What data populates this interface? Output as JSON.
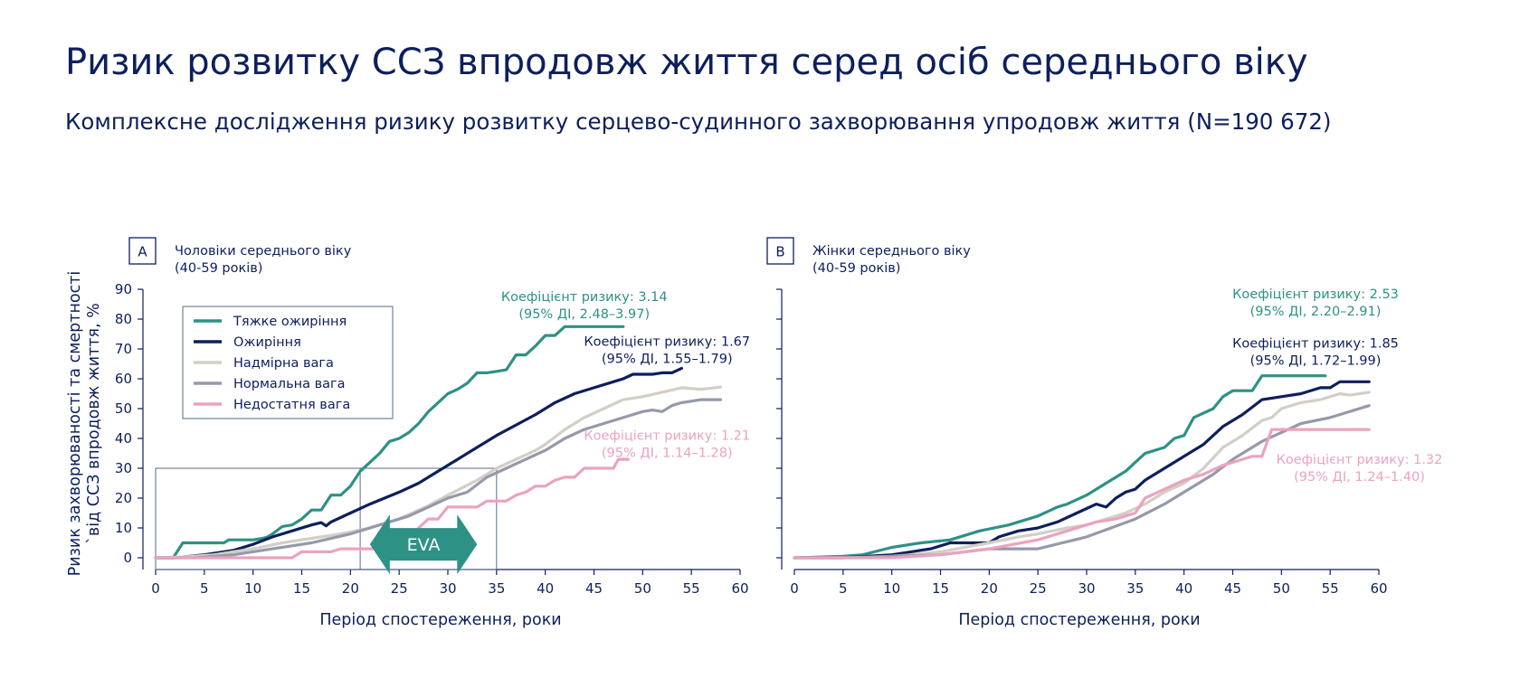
{
  "page": {
    "title": "Ризик розвитку ССЗ впродовж життя серед осіб середнього віку",
    "subtitle": "Комплексне дослідження ризику розвитку серцево-судинного захворювання упродовж життя (N=190 672)"
  },
  "colors": {
    "navy": "#0d1f5c",
    "severe_obesity": "#2e9185",
    "obesity": "#0d1f5c",
    "overweight": "#d3cec6",
    "normal": "#9699a9",
    "underweight": "#eaa3bf",
    "eva_arrow": "#2e9185"
  },
  "chart_data": [
    {
      "type": "line",
      "panel_letter": "A",
      "panel_title": [
        "Чоловіки середнього віку",
        "(40-59 років)"
      ],
      "ylabel": [
        "Ризик захворюваності та смертності",
        "`від ССЗ впродовж життя, %"
      ],
      "xlabel": "Період спостереження, роки",
      "xlim": [
        0,
        60
      ],
      "ylim": [
        0,
        90
      ],
      "xticks": [
        0,
        5,
        10,
        15,
        20,
        25,
        30,
        35,
        40,
        45,
        50,
        55,
        60
      ],
      "yticks": [
        0,
        10,
        20,
        30,
        40,
        50,
        60,
        70,
        80,
        90
      ],
      "legend": [
        {
          "label": "Тяжке ожиріння",
          "color_key": "severe_obesity"
        },
        {
          "label": "Ожиріння",
          "color_key": "obesity"
        },
        {
          "label": "Надмірна вага",
          "color_key": "overweight"
        },
        {
          "label": "Нормальна вага",
          "color_key": "normal"
        },
        {
          "label": "Недостатня вага",
          "color_key": "underweight"
        }
      ],
      "legend_position": "top-left",
      "series": [
        {
          "name": "Тяжке ожиріння",
          "color_key": "severe_obesity",
          "x": [
            0,
            1.8,
            2.8,
            3,
            5,
            7,
            7.5,
            8,
            10,
            11,
            11.5,
            12,
            13,
            14,
            15,
            16,
            17,
            18,
            19,
            20,
            21,
            22,
            23,
            24,
            25,
            26,
            27,
            28,
            29,
            30,
            31,
            32,
            33,
            34,
            35,
            36,
            37,
            38,
            39,
            40,
            41,
            42,
            45,
            48
          ],
          "y": [
            0,
            0,
            5,
            5,
            5,
            5,
            6,
            6,
            6,
            6.5,
            7,
            8,
            10.5,
            11,
            13,
            16,
            16,
            21,
            21,
            24,
            29,
            32,
            35,
            39,
            40,
            42,
            45,
            49,
            52,
            55,
            56.5,
            58.5,
            62,
            62,
            62.5,
            63,
            68,
            68,
            71,
            74.5,
            74.5,
            77.5,
            77.5,
            77.5
          ]
        },
        {
          "name": "Ожиріння",
          "color_key": "obesity",
          "x": [
            0,
            2,
            5,
            8,
            10,
            12,
            14,
            16,
            17,
            17.5,
            18,
            20,
            22,
            25,
            27,
            29,
            31,
            33,
            35,
            37,
            39,
            41,
            43,
            45,
            47,
            48,
            49,
            50,
            51,
            52,
            53,
            54
          ],
          "y": [
            0,
            0,
            1,
            2.5,
            4.5,
            7,
            9,
            11,
            11.8,
            10.7,
            12,
            15,
            18,
            22,
            25,
            29,
            33,
            37,
            41,
            44.5,
            48,
            52,
            55,
            57,
            59,
            60,
            61.5,
            61.5,
            61.5,
            62,
            62,
            63.5
          ]
        },
        {
          "name": "Надмірна вага",
          "color_key": "overweight",
          "x": [
            0,
            3,
            6,
            10,
            13,
            16,
            19,
            22,
            25,
            28,
            30,
            33,
            35,
            37,
            39,
            40,
            42,
            44,
            46,
            48,
            50,
            52,
            54,
            56,
            58
          ],
          "y": [
            0,
            0.3,
            1,
            3,
            5,
            6.5,
            8,
            10,
            13,
            17.5,
            21,
            26,
            30,
            33,
            36,
            38,
            43,
            47,
            50,
            53,
            54,
            55.5,
            57,
            56.5,
            57.2
          ]
        },
        {
          "name": "Нормальна вага",
          "color_key": "normal",
          "x": [
            0,
            4,
            8,
            12,
            16,
            20,
            23,
            26,
            28,
            30,
            32,
            34,
            36,
            38,
            40,
            42,
            44,
            46,
            48,
            50,
            51,
            52,
            53,
            54,
            55,
            56,
            57,
            58
          ],
          "y": [
            0,
            0,
            1,
            3,
            5,
            8,
            11,
            14,
            17,
            20,
            22,
            27,
            30,
            33,
            36,
            40,
            43,
            45,
            47,
            49,
            49.5,
            49,
            51,
            52,
            52.5,
            53,
            53,
            53
          ]
        },
        {
          "name": "Недостатня вага",
          "color_key": "underweight",
          "x": [
            0,
            10,
            14,
            15,
            18,
            19,
            20,
            21,
            26,
            27,
            28,
            29,
            30,
            33,
            34,
            36,
            37,
            38,
            39,
            40,
            41,
            42,
            43,
            44,
            45,
            46,
            47,
            47.5,
            48,
            48.5
          ],
          "y": [
            0,
            0,
            0,
            2,
            2,
            3,
            3,
            3,
            3,
            10,
            13,
            13,
            17,
            17,
            19,
            19,
            21,
            22,
            24,
            24,
            26,
            27,
            27,
            30,
            30,
            30,
            30,
            33,
            33,
            33
          ]
        }
      ],
      "annotations": [
        {
          "lines": [
            "Коефіцієнт ризику: 3.14",
            "(95% ДІ, 2.48–3.97)"
          ],
          "color_key": "severe_obesity",
          "x": 44,
          "y": 86
        },
        {
          "lines": [
            "Коефіцієнт ризику: 1.67",
            "(95% ДІ, 1.55–1.79)"
          ],
          "color_key": "obesity",
          "x": 52.5,
          "y": 71
        },
        {
          "lines": [
            "Коефіцієнт ризику: 1.21",
            "(95% ДІ, 1.14–1.28)"
          ],
          "color_key": "underweight",
          "x": 52.5,
          "y": 39.5
        }
      ],
      "eva": {
        "label": "EVA",
        "x_from": 22,
        "x_to": 33,
        "y": 4.5
      },
      "highlight_box": {
        "x_from": 0,
        "x_to": 35,
        "y_from": 0,
        "y_to": 30,
        "vline_x": 21
      }
    },
    {
      "type": "line",
      "panel_letter": "B",
      "panel_title": [
        "Жінки середнього віку",
        "(40-59 років)"
      ],
      "xlabel": "Період спостереження, роки",
      "xlim": [
        0,
        60
      ],
      "ylim": [
        0,
        90
      ],
      "xticks": [
        0,
        5,
        10,
        15,
        20,
        25,
        30,
        35,
        40,
        45,
        50,
        55,
        60
      ],
      "yticks": [
        0,
        10,
        20,
        30,
        40,
        50,
        60,
        70,
        80,
        90
      ],
      "series": [
        {
          "name": "Тяжке ожиріння",
          "color_key": "severe_obesity",
          "x": [
            0,
            5,
            7,
            10,
            13,
            16,
            19,
            22,
            25,
            27,
            28,
            30,
            32,
            34,
            35,
            36,
            38,
            39,
            40,
            41,
            43,
            44,
            45,
            47,
            48,
            50,
            52,
            54.5
          ],
          "y": [
            0,
            0.5,
            1,
            3.5,
            5,
            6,
            9,
            11,
            14,
            17,
            18,
            21,
            25,
            29,
            32,
            35,
            37,
            40,
            41,
            47,
            50,
            54,
            56,
            56,
            61,
            61,
            61,
            61
          ]
        },
        {
          "name": "Ожиріння",
          "color_key": "obesity",
          "x": [
            0,
            5,
            10,
            12,
            14,
            16,
            18,
            20,
            21,
            23,
            25,
            27,
            29,
            31,
            32,
            33,
            34,
            35,
            36,
            38,
            40,
            42,
            44,
            46,
            48,
            50,
            52,
            54,
            55,
            56,
            58,
            59
          ],
          "y": [
            0,
            0,
            1,
            2,
            3,
            5,
            5,
            5,
            7,
            9,
            10,
            12,
            15,
            18,
            17,
            20,
            22,
            23,
            26,
            30,
            34,
            38,
            44,
            48,
            53,
            54,
            55,
            57,
            57,
            59,
            59,
            59
          ]
        },
        {
          "name": "Надмірна вага",
          "color_key": "overweight",
          "x": [
            0,
            8,
            12,
            15,
            20,
            23,
            25,
            28,
            30,
            32,
            34,
            36,
            38,
            40,
            42,
            44,
            46,
            48,
            49,
            50,
            52,
            54,
            56,
            57,
            58,
            59
          ],
          "y": [
            0,
            0,
            1,
            2,
            5,
            7,
            8,
            10,
            11,
            13,
            15,
            18,
            22,
            25,
            30,
            37,
            41,
            46,
            47,
            50,
            52,
            53,
            55,
            54.5,
            55,
            55.5
          ]
        },
        {
          "name": "Нормальна вага",
          "color_key": "normal",
          "x": [
            0,
            5,
            10,
            15,
            20,
            25,
            30,
            35,
            38,
            40,
            43,
            45,
            48,
            50,
            52,
            55,
            59
          ],
          "y": [
            0,
            0,
            0.5,
            1,
            3,
            3,
            7,
            13,
            18,
            22,
            28,
            33,
            39,
            42,
            45,
            47,
            51
          ]
        },
        {
          "name": "Недостатня вага",
          "color_key": "underweight",
          "x": [
            0,
            10,
            15,
            20,
            25,
            28,
            30,
            31,
            32,
            33,
            34,
            35,
            36,
            38,
            40,
            42,
            44,
            46,
            47,
            48,
            49,
            50,
            55,
            59
          ],
          "y": [
            0,
            0,
            1,
            3,
            6,
            9,
            11,
            12,
            12.5,
            13,
            14,
            15,
            20,
            23,
            26,
            28,
            31,
            33,
            34,
            34,
            43,
            43,
            43,
            43
          ]
        }
      ],
      "annotations": [
        {
          "lines": [
            "Коефіцієнт ризику: 2.53",
            "(95% ДІ, 2.20–2.91)"
          ],
          "color_key": "severe_obesity",
          "x": 53.5,
          "y": 87
        },
        {
          "lines": [
            "Коефіцієнт ризику: 1.85",
            "(95% ДІ, 1.72–1.99)"
          ],
          "color_key": "obesity",
          "x": 53.5,
          "y": 70.5
        },
        {
          "lines": [
            "Коефіцієнт ризику: 1.32",
            "(95% ДІ, 1.24–1.40)"
          ],
          "color_key": "underweight",
          "x": 58,
          "y": 31.5
        }
      ]
    }
  ]
}
